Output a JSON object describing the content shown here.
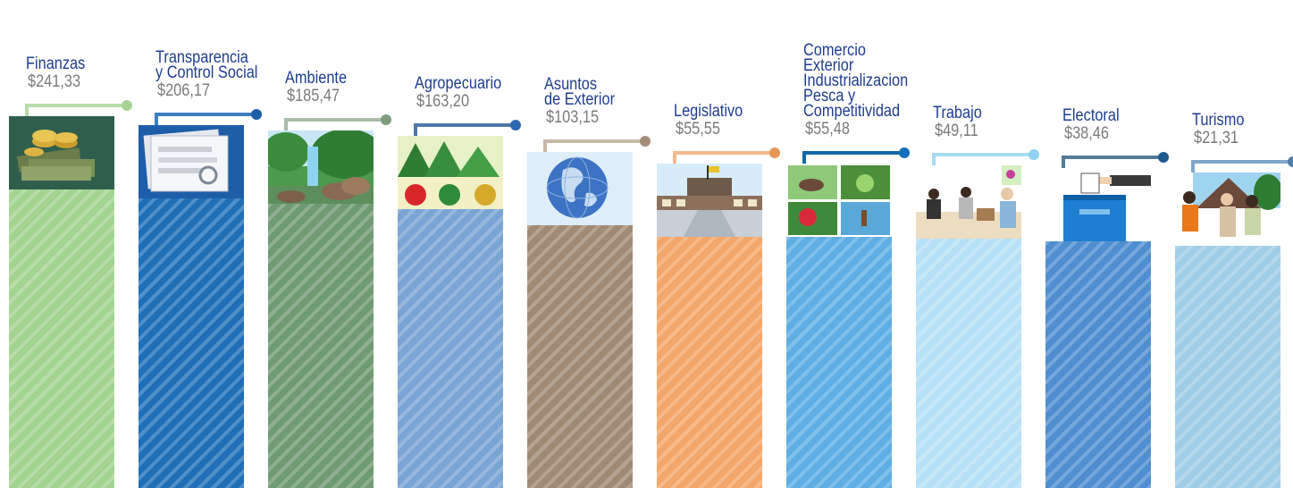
{
  "chart_data": {
    "type": "bar",
    "title": "",
    "xlabel": "",
    "ylabel": "",
    "categories": [
      "Finanzas",
      "Transparencia y Control Social",
      "Ambiente",
      "Agropecuario",
      "Asuntos de Exterior",
      "Legislativo",
      "Comercio Exterior Industrializacion Pesca y Competitividad",
      "Trabajo",
      "Electoral",
      "Turismo"
    ],
    "values": [
      241.33,
      206.17,
      185.47,
      163.2,
      103.15,
      55.55,
      55.48,
      49.11,
      38.46,
      21.31
    ],
    "value_labels": [
      "$241,33",
      "$206,17",
      "$185,47",
      "$163,20",
      "$103,15",
      "$55,55",
      "$55,48",
      "$49,11",
      "$38,46",
      "$21,31"
    ],
    "name_lines": [
      [
        "Finanzas"
      ],
      [
        "Transparencia",
        "y Control Social"
      ],
      [
        "Ambiente"
      ],
      [
        "Agropecuario"
      ],
      [
        "Asuntos",
        "de Exterior"
      ],
      [
        "Legislativo"
      ],
      [
        "Comercio",
        "Exterior",
        "Industrializacion",
        "Pesca y",
        "Competitividad"
      ],
      [
        "Trabajo"
      ],
      [
        "Electoral"
      ],
      [
        "Turismo"
      ]
    ],
    "colors": [
      "#a3d48f",
      "#1f6fb8",
      "#6f9a72",
      "#7aa4d4",
      "#a08a74",
      "#f3a66a",
      "#5eaee4",
      "#b6e0f5",
      "#4f8ed0",
      "#9fcde6"
    ],
    "connector_colors": [
      "#b8dda9",
      "#3a7fbf",
      "#a9bba9",
      "#4f79ab",
      "#c9b9a9",
      "#f3bb8c",
      "#1268a8",
      "#a6dbf2",
      "#537a96",
      "#7fa8c6"
    ],
    "dot_colors": [
      "#a8d496",
      "#1d5fa8",
      "#7f9c80",
      "#2e68b0",
      "#a48e78",
      "#e8955a",
      "#1070b8",
      "#8ed1f0",
      "#1d5a8e",
      "#4f7fa8"
    ],
    "icons": [
      "money-icon",
      "documents-icon",
      "nature-waterfall-icon",
      "crops-icon",
      "globe-icon",
      "parliament-building-icon",
      "trade-fishing-icon",
      "office-workers-icon",
      "ballot-box-icon",
      "tourists-icon"
    ],
    "legend": "none",
    "grid": false
  }
}
